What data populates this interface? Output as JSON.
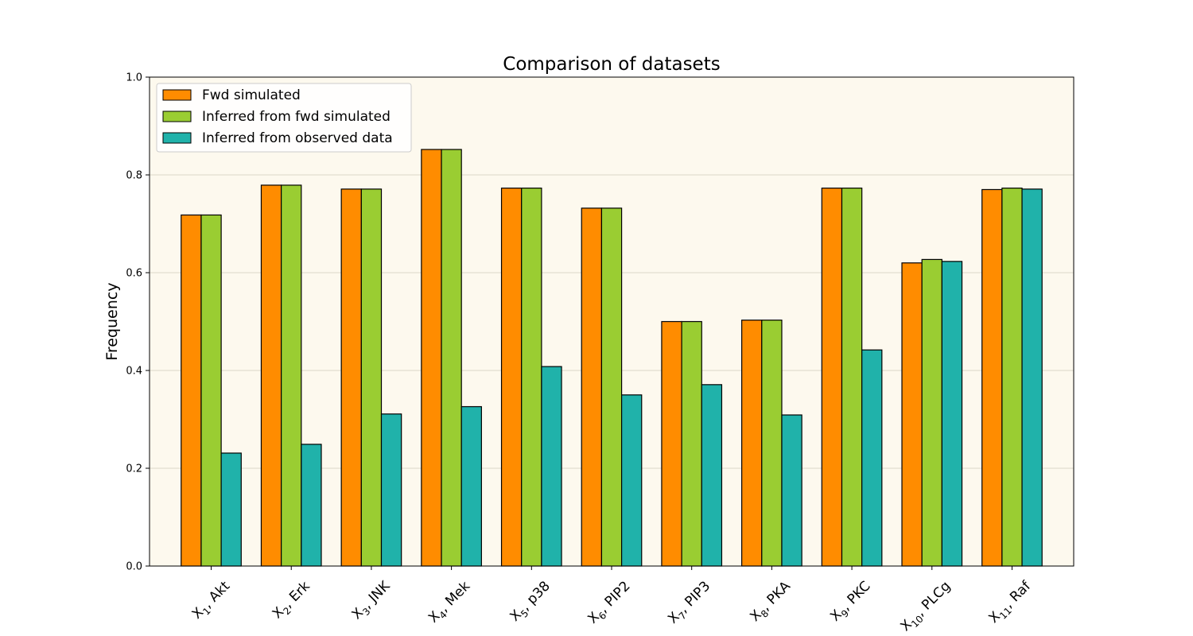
{
  "chart_data": {
    "type": "bar",
    "title": "Comparison of datasets",
    "xlabel": "",
    "ylabel": "Frequency",
    "ylim": [
      0,
      1.0
    ],
    "yticks": [
      "0.0",
      "0.2",
      "0.4",
      "0.6",
      "0.8",
      "1.0"
    ],
    "grid": "horizontal",
    "legend_position": "top-left",
    "background_color": "#fdf9ee",
    "categories": [
      {
        "var": "X",
        "sub": "1",
        "name": ", Akt"
      },
      {
        "var": "X",
        "sub": "2",
        "name": ", Erk"
      },
      {
        "var": "X",
        "sub": "3",
        "name": ", JNK"
      },
      {
        "var": "X",
        "sub": "4",
        "name": ", Mek"
      },
      {
        "var": "X",
        "sub": "5",
        "name": ", p38"
      },
      {
        "var": "X",
        "sub": "6",
        "name": ", PIP2"
      },
      {
        "var": "X",
        "sub": "7",
        "name": ", PIP3"
      },
      {
        "var": "X",
        "sub": "8",
        "name": ", PKA"
      },
      {
        "var": "X",
        "sub": "9",
        "name": ", PKC"
      },
      {
        "var": "X",
        "sub": "10",
        "name": ", PLCg"
      },
      {
        "var": "X",
        "sub": "11",
        "name": ", Raf"
      }
    ],
    "series": [
      {
        "name": "Fwd simulated",
        "color": "#ff8c00",
        "values": [
          0.718,
          0.779,
          0.771,
          0.852,
          0.773,
          0.732,
          0.5,
          0.503,
          0.773,
          0.62,
          0.77
        ]
      },
      {
        "name": "Inferred from fwd simulated",
        "color": "#9acd32",
        "values": [
          0.718,
          0.779,
          0.771,
          0.852,
          0.773,
          0.732,
          0.5,
          0.503,
          0.773,
          0.627,
          0.773
        ]
      },
      {
        "name": "Inferred from observed data",
        "color": "#20b2aa",
        "values": [
          0.231,
          0.249,
          0.311,
          0.326,
          0.408,
          0.35,
          0.371,
          0.309,
          0.442,
          0.623,
          0.771
        ]
      }
    ]
  }
}
